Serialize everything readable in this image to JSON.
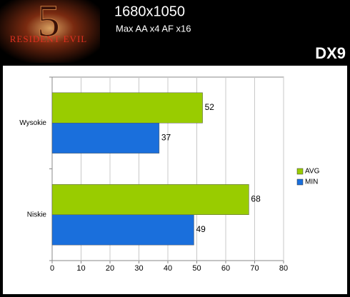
{
  "logo": {
    "numeral": "5",
    "text": "RESIDENT EVIL"
  },
  "badge": "DX9",
  "chart_data": {
    "type": "bar",
    "orientation": "horizontal",
    "title": "1680x1050",
    "subtitle": "Max AA x4 AF x16",
    "categories": [
      "Wysokie",
      "Niskie"
    ],
    "series": [
      {
        "name": "AVG",
        "color": "#99cc00",
        "values": [
          52,
          68
        ]
      },
      {
        "name": "MIN",
        "color": "#1a6fdc",
        "values": [
          37,
          49
        ]
      }
    ],
    "xlim": [
      0,
      80
    ],
    "xticks": [
      0,
      10,
      20,
      30,
      40,
      50,
      60,
      70,
      80
    ],
    "grid": true,
    "legend": "right",
    "data_labels": true
  }
}
